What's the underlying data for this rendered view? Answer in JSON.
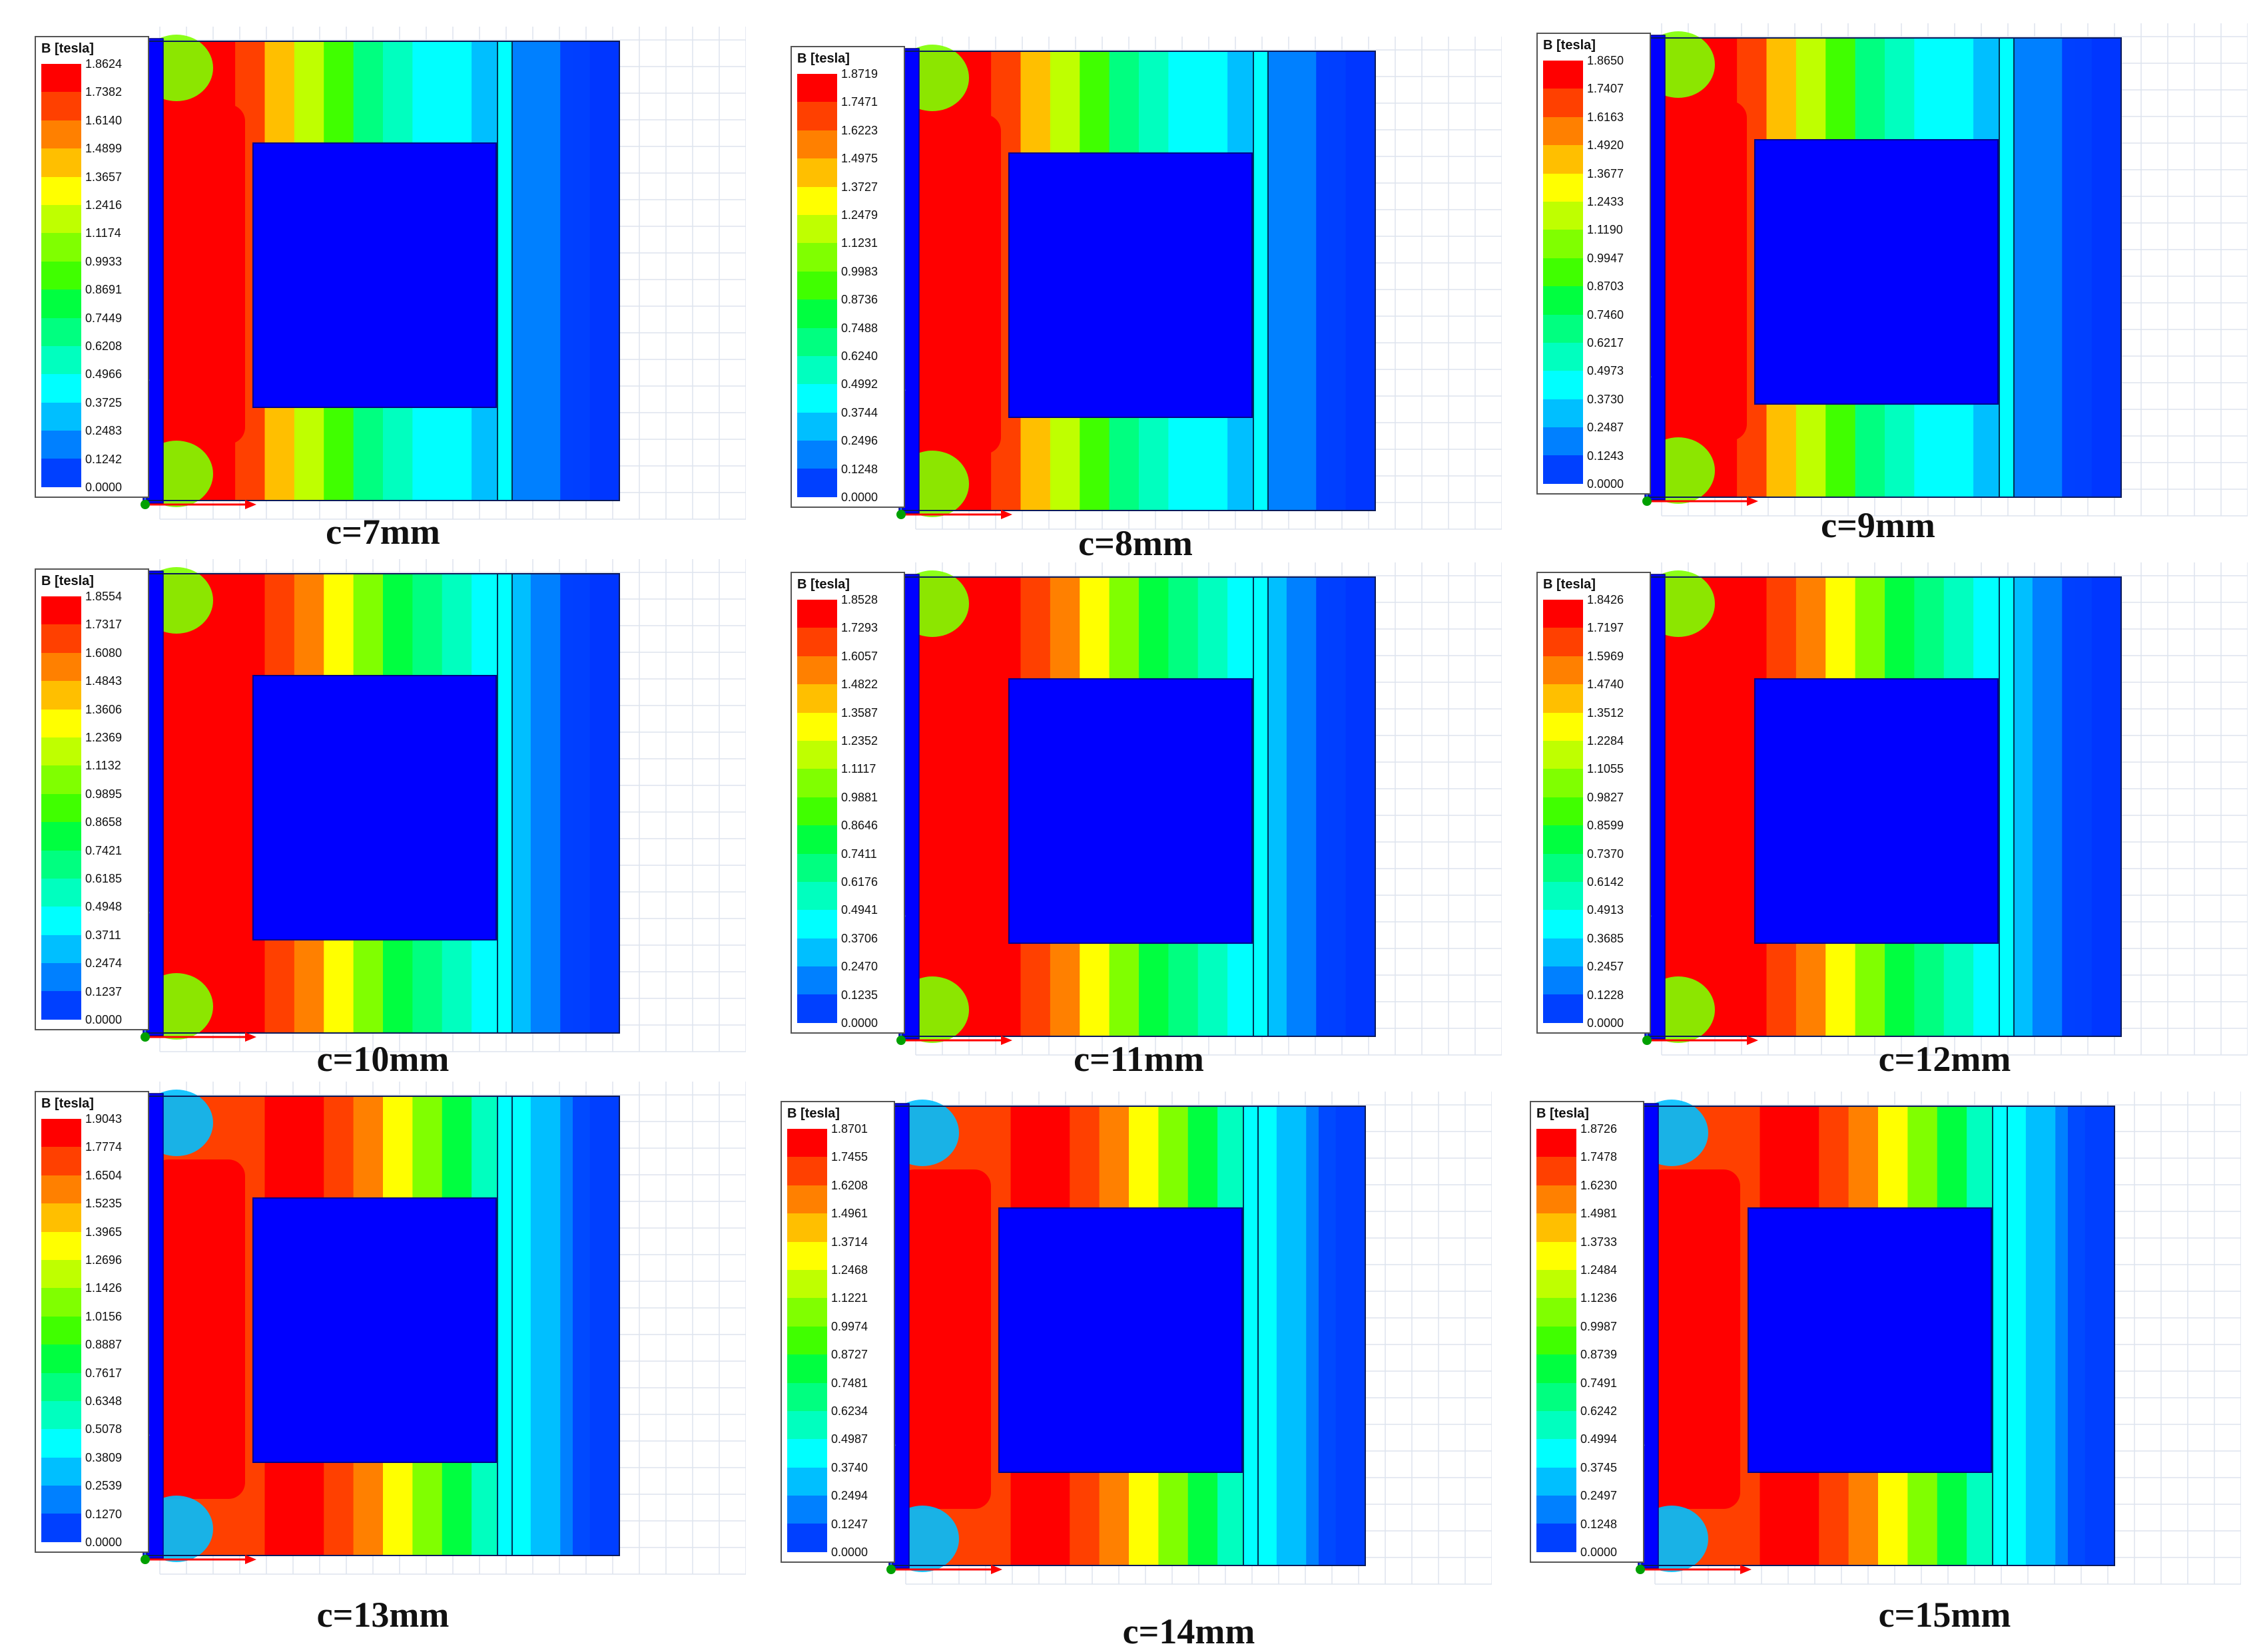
{
  "legend_title": "B [tesla]",
  "color_scale": [
    "#ff0000",
    "#ff4000",
    "#ff8000",
    "#ffbf00",
    "#ffff00",
    "#bfff00",
    "#80ff00",
    "#40ff00",
    "#00ff40",
    "#00ff80",
    "#00ffbf",
    "#00ffff",
    "#00bfff",
    "#0080ff",
    "#0040ff",
    "#0000ff"
  ],
  "panels": [
    {
      "caption": "c=7mm",
      "ticks": [
        "1.8624",
        "1.7382",
        "1.6140",
        "1.4899",
        "1.3657",
        "1.2416",
        "1.1174",
        "0.9933",
        "0.8691",
        "0.7449",
        "0.6208",
        "0.4966",
        "0.3725",
        "0.2483",
        "0.1242",
        "0.0000"
      ]
    },
    {
      "caption": "c=8mm",
      "ticks": [
        "1.8719",
        "1.7471",
        "1.6223",
        "1.4975",
        "1.3727",
        "1.2479",
        "1.1231",
        "0.9983",
        "0.8736",
        "0.7488",
        "0.6240",
        "0.4992",
        "0.3744",
        "0.2496",
        "0.1248",
        "0.0000"
      ]
    },
    {
      "caption": "c=9mm",
      "ticks": [
        "1.8650",
        "1.7407",
        "1.6163",
        "1.4920",
        "1.3677",
        "1.2433",
        "1.1190",
        "0.9947",
        "0.8703",
        "0.7460",
        "0.6217",
        "0.4973",
        "0.3730",
        "0.2487",
        "0.1243",
        "0.0000"
      ]
    },
    {
      "caption": "c=10mm",
      "ticks": [
        "1.8554",
        "1.7317",
        "1.6080",
        "1.4843",
        "1.3606",
        "1.2369",
        "1.1132",
        "0.9895",
        "0.8658",
        "0.7421",
        "0.6185",
        "0.4948",
        "0.3711",
        "0.2474",
        "0.1237",
        "0.0000"
      ]
    },
    {
      "caption": "c=11mm",
      "ticks": [
        "1.8528",
        "1.7293",
        "1.6057",
        "1.4822",
        "1.3587",
        "1.2352",
        "1.1117",
        "0.9881",
        "0.8646",
        "0.7411",
        "0.6176",
        "0.4941",
        "0.3706",
        "0.2470",
        "0.1235",
        "0.0000"
      ]
    },
    {
      "caption": "c=12mm",
      "ticks": [
        "1.8426",
        "1.7197",
        "1.5969",
        "1.4740",
        "1.3512",
        "1.2284",
        "1.1055",
        "0.9827",
        "0.8599",
        "0.7370",
        "0.6142",
        "0.4913",
        "0.3685",
        "0.2457",
        "0.1228",
        "0.0000"
      ]
    },
    {
      "caption": "c=13mm",
      "ticks": [
        "1.9043",
        "1.7774",
        "1.6504",
        "1.5235",
        "1.3965",
        "1.2696",
        "1.1426",
        "1.0156",
        "0.8887",
        "0.7617",
        "0.6348",
        "0.5078",
        "0.3809",
        "0.2539",
        "0.1270",
        "0.0000"
      ]
    },
    {
      "caption": "c=14mm",
      "ticks": [
        "1.8701",
        "1.7455",
        "1.6208",
        "1.4961",
        "1.3714",
        "1.2468",
        "1.1221",
        "0.9974",
        "0.8727",
        "0.7481",
        "0.6234",
        "0.4987",
        "0.3740",
        "0.2494",
        "0.1247",
        "0.0000"
      ]
    },
    {
      "caption": "c=15mm",
      "ticks": [
        "1.8726",
        "1.7478",
        "1.6230",
        "1.4981",
        "1.3733",
        "1.2484",
        "1.1236",
        "0.9987",
        "0.8739",
        "0.7491",
        "0.6242",
        "0.4994",
        "0.3745",
        "0.2497",
        "0.1248",
        "0.0000"
      ]
    }
  ]
}
